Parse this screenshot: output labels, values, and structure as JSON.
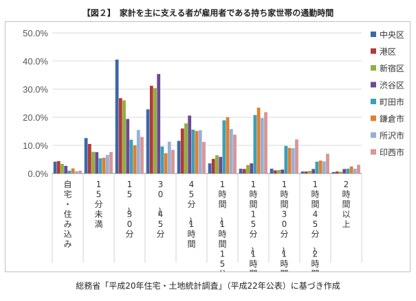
{
  "title": "【図２】　家計を主に支える者が雇用者である持ち家世帯の通勤時間",
  "source": "総務省「平成20年住宅・土地統計調査」（平成22年公表）に基づき作成",
  "chart_data": {
    "type": "bar",
    "title": "【図２】　家計を主に支える者が雇用者である持ち家世帯の通勤時間",
    "ylim": [
      0,
      50
    ],
    "yticks": [
      "0.0%",
      "10.0%",
      "20.0%",
      "30.0%",
      "40.0%",
      "50.0%"
    ],
    "grid": true,
    "legend_position": "right",
    "categories": [
      "自宅・住み込み",
      "15分未満",
      "15～30分",
      "30～45分",
      "45分～1時間",
      "1時間～1時間15分",
      "1時間15分～1時間30分",
      "1時間30分～1時間45分",
      "1時間45分～2時間",
      "2時間以上"
    ],
    "series": [
      {
        "name": "中央区",
        "color": "#3d68a8",
        "values": [
          4.2,
          12.6,
          40.5,
          22.8,
          11.6,
          3.6,
          1.7,
          1.7,
          0.7,
          0.5
        ]
      },
      {
        "name": "港区",
        "color": "#b23a33",
        "values": [
          4.4,
          10.5,
          26.8,
          31.2,
          16.0,
          5.2,
          1.6,
          1.1,
          0.7,
          0.7
        ]
      },
      {
        "name": "新宿区",
        "color": "#8faf3f",
        "values": [
          3.4,
          7.7,
          26.0,
          30.4,
          17.8,
          6.5,
          3.0,
          1.2,
          0.9,
          0.6
        ]
      },
      {
        "name": "渋谷区",
        "color": "#6b4b93",
        "values": [
          2.7,
          7.6,
          19.4,
          35.4,
          20.6,
          5.9,
          3.6,
          1.4,
          1.6,
          1.6
        ]
      },
      {
        "name": "町田市",
        "color": "#3c9fb5",
        "values": [
          1.0,
          5.4,
          12.0,
          9.6,
          15.6,
          18.9,
          20.8,
          9.8,
          4.2,
          1.7
        ]
      },
      {
        "name": "鎌倉市",
        "color": "#e07f2e",
        "values": [
          1.8,
          5.6,
          10.0,
          7.2,
          15.1,
          20.0,
          23.4,
          9.1,
          4.6,
          2.5
        ]
      },
      {
        "name": "所沢市",
        "color": "#95b0d8",
        "values": [
          0.8,
          6.6,
          15.5,
          11.3,
          15.4,
          15.8,
          19.7,
          9.0,
          4.3,
          1.7
        ]
      },
      {
        "name": "印西市",
        "color": "#d99594",
        "values": [
          1.0,
          7.6,
          13.0,
          8.4,
          11.2,
          13.8,
          21.8,
          12.1,
          7.0,
          3.1
        ]
      }
    ]
  }
}
